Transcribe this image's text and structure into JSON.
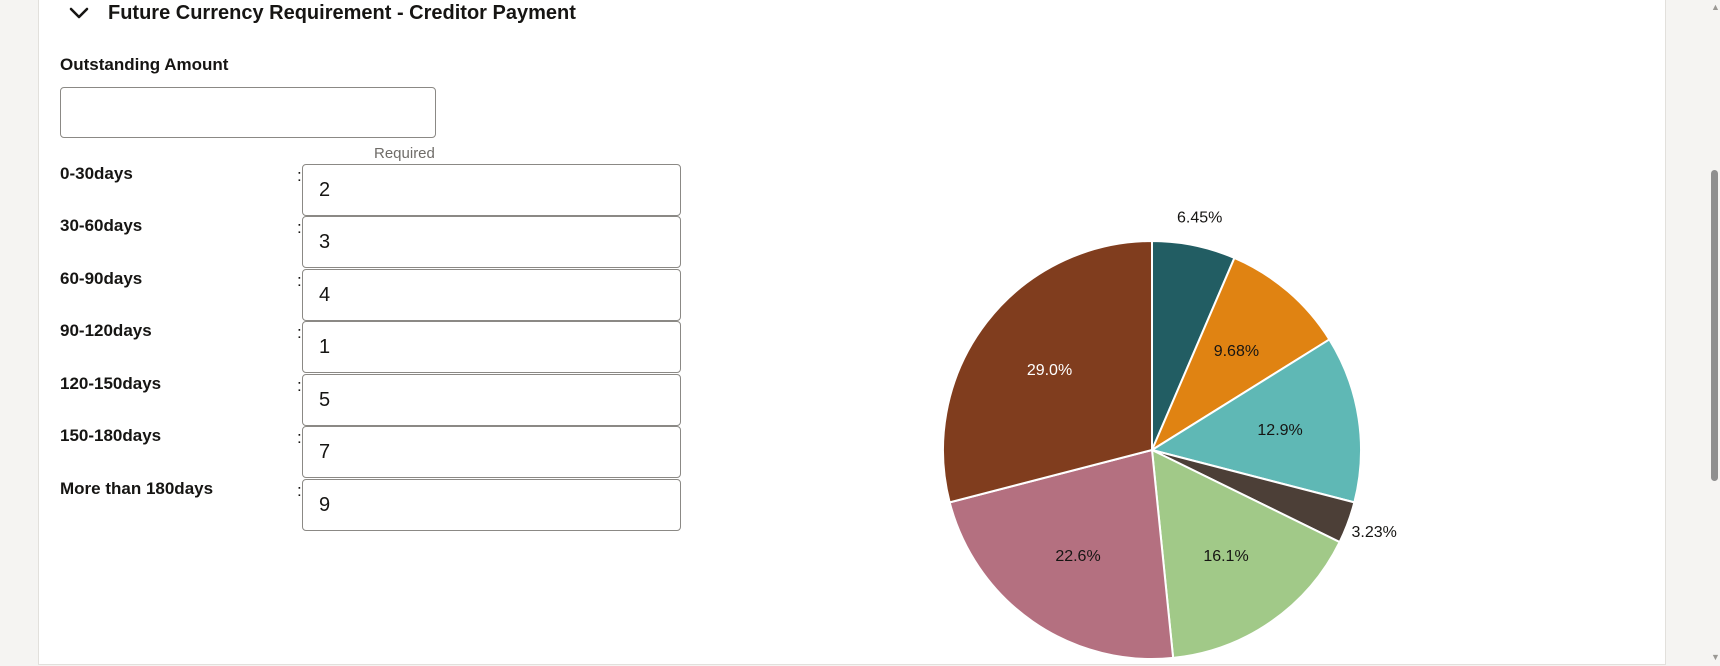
{
  "section": {
    "title": "Future Currency Requirement - Creditor Payment",
    "toggle_icon": "chevron-down-icon"
  },
  "outstanding": {
    "label": "Outstanding Amount",
    "value": "",
    "required_text": "Required"
  },
  "rows": [
    {
      "label": "0-30days",
      "value": "2"
    },
    {
      "label": "30-60days",
      "value": "3"
    },
    {
      "label": "60-90days",
      "value": "4"
    },
    {
      "label": "90-120days",
      "value": "1"
    },
    {
      "label": "120-150days",
      "value": "5"
    },
    {
      "label": "150-180days",
      "value": "7"
    },
    {
      "label": "More than 180days",
      "value": "9"
    }
  ],
  "colon_text": ":",
  "chart_data": {
    "type": "pie",
    "start_angle_deg": 0,
    "direction": "clockwise",
    "slices": [
      {
        "value": 2,
        "label": "6.45%",
        "color": "#225d63",
        "label_color": "#161513",
        "label_outside": true
      },
      {
        "value": 3,
        "label": "9.68%",
        "color": "#e08312",
        "label_color": "#161513",
        "label_outside": false
      },
      {
        "value": 4,
        "label": "12.9%",
        "color": "#5fb8b5",
        "label_color": "#161513",
        "label_outside": false
      },
      {
        "value": 1,
        "label": "3.23%",
        "color": "#4c3f37",
        "label_color": "#161513",
        "label_outside": true
      },
      {
        "value": 5,
        "label": "16.1%",
        "color": "#a1c988",
        "label_color": "#161513",
        "label_outside": false
      },
      {
        "value": 7,
        "label": "22.6%",
        "color": "#b47080",
        "label_color": "#161513",
        "label_outside": false
      },
      {
        "value": 9,
        "label": "29.0%",
        "color": "#803d1e",
        "label_color": "#ffffff",
        "label_outside": false
      }
    ]
  }
}
